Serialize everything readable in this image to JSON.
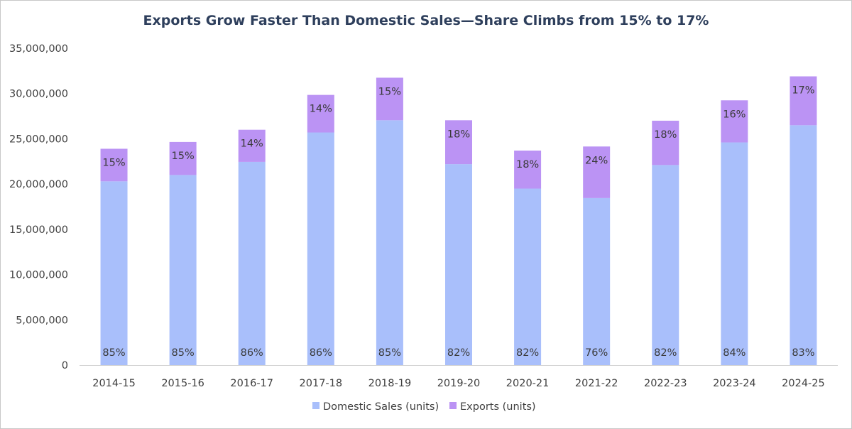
{
  "chart_data": {
    "type": "bar",
    "stacked": true,
    "title": "Exports Grow Faster Than Domestic Sales—Share Climbs from 15% to 17%",
    "xlabel": "",
    "ylabel": "",
    "ylim": [
      0,
      35000000
    ],
    "ytick_step": 5000000,
    "grid": false,
    "legend_position": "bottom",
    "categories": [
      "2014-15",
      "2015-16",
      "2016-17",
      "2017-18",
      "2018-19",
      "2019-20",
      "2020-21",
      "2021-22",
      "2022-23",
      "2023-24",
      "2024-25"
    ],
    "series": [
      {
        "name": "Domestic Sales (units)",
        "color": "#a9bffb",
        "values": [
          20300000,
          21000000,
          22450000,
          25700000,
          27050000,
          22200000,
          19500000,
          18450000,
          22100000,
          24600000,
          26500000
        ],
        "labels": [
          "85%",
          "85%",
          "86%",
          "86%",
          "85%",
          "82%",
          "82%",
          "76%",
          "82%",
          "84%",
          "83%"
        ]
      },
      {
        "name": "Exports (units)",
        "color": "#bb93f4",
        "values": [
          3600000,
          3650000,
          3550000,
          4150000,
          4700000,
          4850000,
          4200000,
          5700000,
          4900000,
          4650000,
          5400000
        ],
        "labels": [
          "15%",
          "15%",
          "14%",
          "14%",
          "15%",
          "18%",
          "18%",
          "24%",
          "18%",
          "16%",
          "17%"
        ]
      }
    ]
  }
}
